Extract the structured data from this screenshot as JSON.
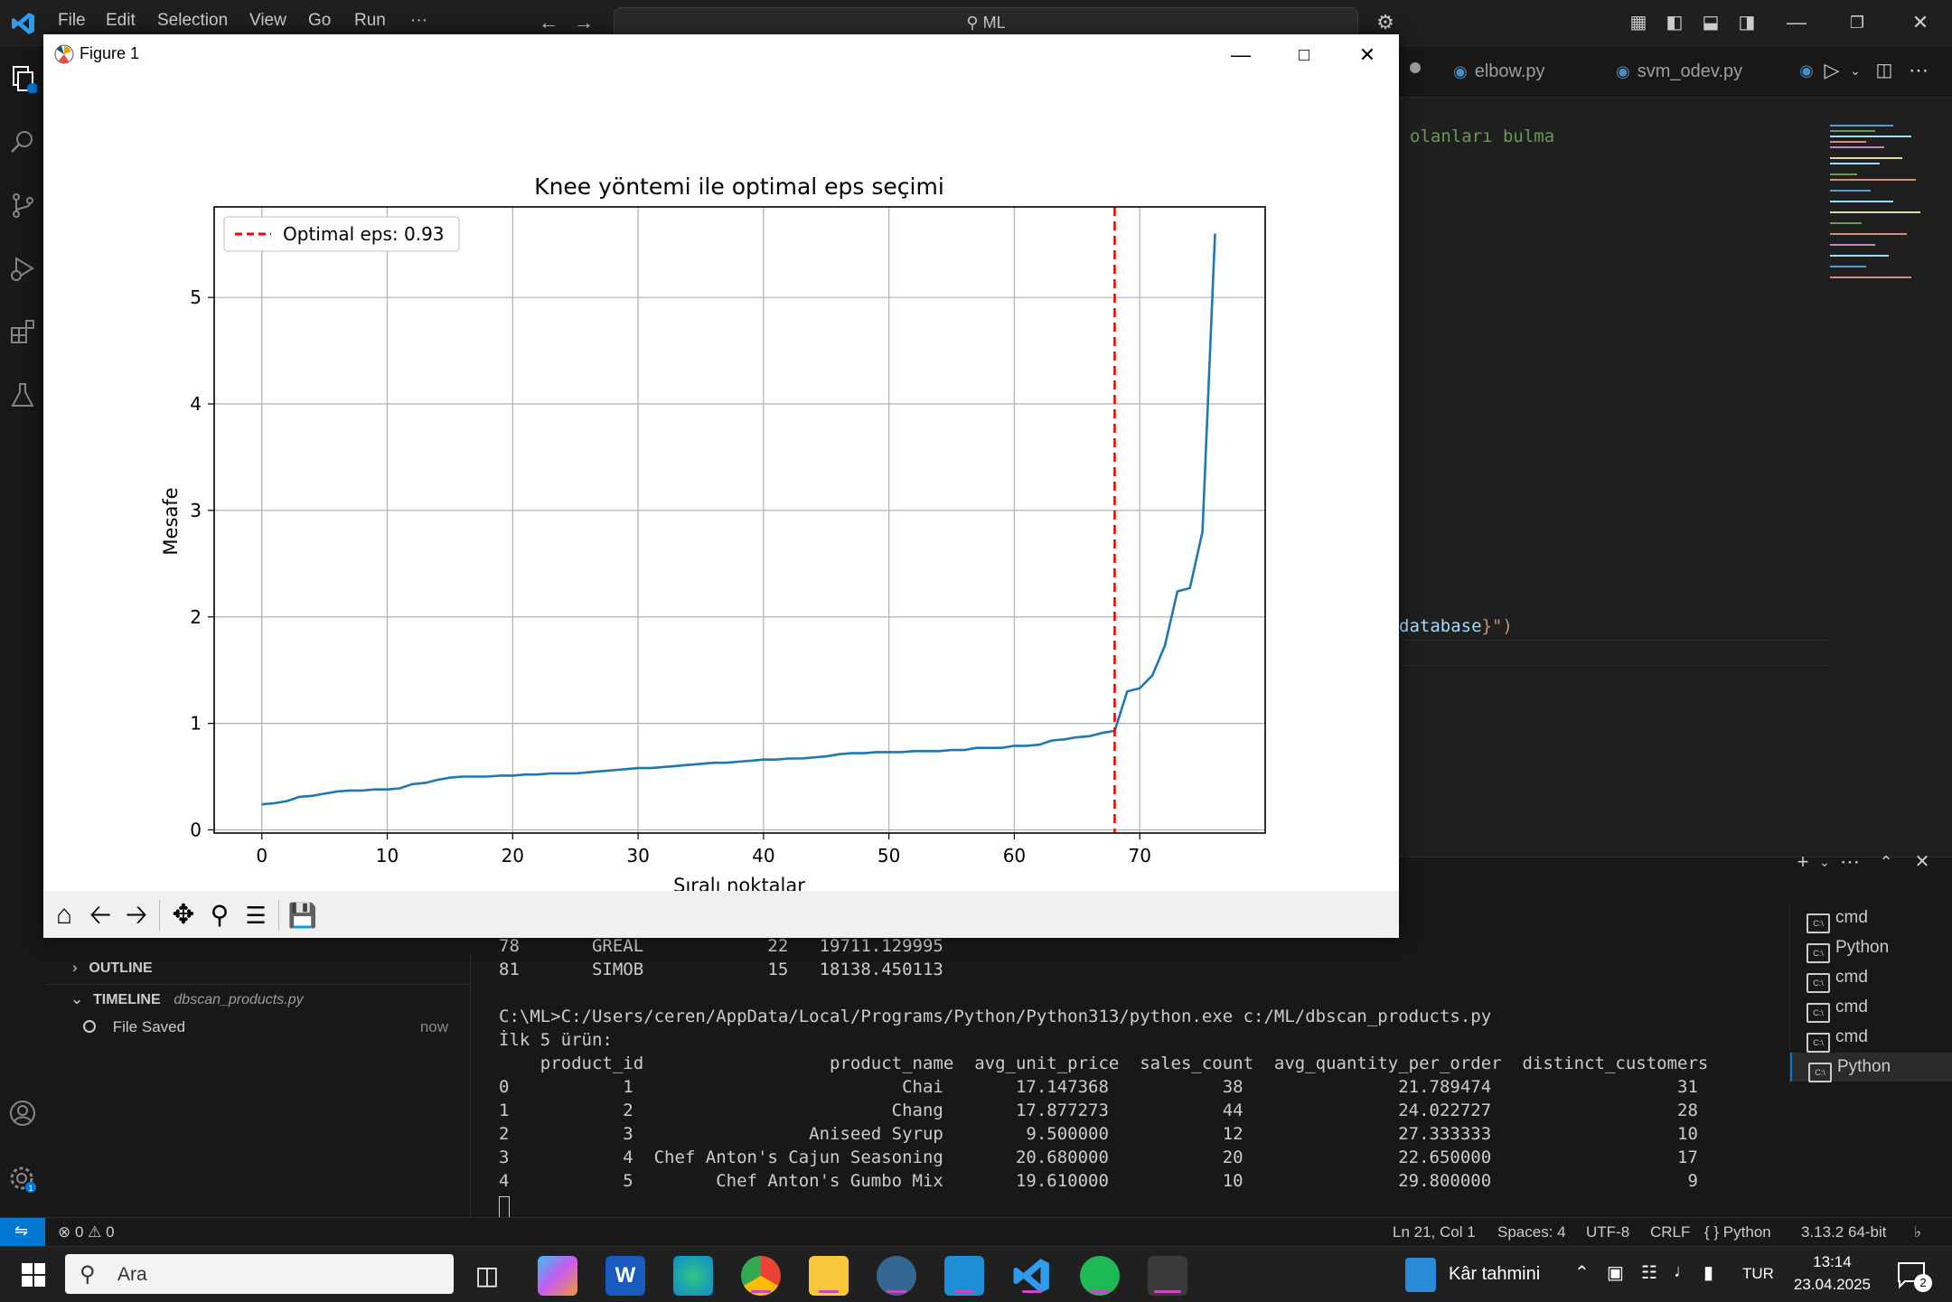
{
  "vscode": {
    "menu": [
      "File",
      "Edit",
      "Selection",
      "View",
      "Go",
      "Run",
      "···"
    ],
    "command_center": "ML",
    "tabs": [
      {
        "label": "elbow.py"
      },
      {
        "label": "svm_odev.py"
      }
    ],
    "editor_lines": {
      "line1": "olanları bulma",
      "line2_prefix": "database",
      "line2_suffix": "}\")"
    }
  },
  "figure": {
    "window_title": "Figure 1"
  },
  "chart_data": {
    "type": "line",
    "title": "Knee yöntemi ile optimal eps seçimi",
    "xlabel": "Sıralı noktalar",
    "ylabel": "Mesafe",
    "xlim": [
      -3.8,
      80
    ],
    "ylim": [
      -0.03,
      5.85
    ],
    "xticks": [
      0,
      10,
      20,
      30,
      40,
      50,
      60,
      70
    ],
    "yticks": [
      0,
      1,
      2,
      3,
      4,
      5
    ],
    "grid": true,
    "legend_position": "top-left",
    "series": [
      {
        "name": "",
        "color": "#1f77b4",
        "x": [
          0,
          1,
          2,
          3,
          4,
          5,
          6,
          7,
          8,
          9,
          10,
          11,
          12,
          13,
          14,
          15,
          16,
          17,
          18,
          19,
          20,
          21,
          22,
          23,
          24,
          25,
          26,
          27,
          28,
          29,
          30,
          31,
          32,
          33,
          34,
          35,
          36,
          37,
          38,
          39,
          40,
          41,
          42,
          43,
          44,
          45,
          46,
          47,
          48,
          49,
          50,
          51,
          52,
          53,
          54,
          55,
          56,
          57,
          58,
          59,
          60,
          61,
          62,
          63,
          64,
          65,
          66,
          67,
          68,
          69,
          70,
          71,
          72,
          73,
          74,
          75,
          76
        ],
        "y": [
          0.24,
          0.25,
          0.27,
          0.31,
          0.32,
          0.34,
          0.36,
          0.37,
          0.37,
          0.38,
          0.38,
          0.39,
          0.43,
          0.44,
          0.47,
          0.49,
          0.5,
          0.5,
          0.5,
          0.51,
          0.51,
          0.52,
          0.52,
          0.53,
          0.53,
          0.53,
          0.54,
          0.55,
          0.56,
          0.57,
          0.58,
          0.58,
          0.59,
          0.6,
          0.61,
          0.62,
          0.63,
          0.63,
          0.64,
          0.65,
          0.66,
          0.66,
          0.67,
          0.67,
          0.68,
          0.69,
          0.71,
          0.72,
          0.72,
          0.73,
          0.73,
          0.73,
          0.74,
          0.74,
          0.74,
          0.75,
          0.75,
          0.77,
          0.77,
          0.77,
          0.79,
          0.79,
          0.8,
          0.84,
          0.85,
          0.87,
          0.88,
          0.91,
          0.93,
          1.3,
          1.33,
          1.45,
          1.73,
          2.24,
          2.27,
          2.8,
          5.6
        ]
      },
      {
        "name": "Optimal eps: 0.93",
        "type": "vline",
        "x": 68,
        "color": "#ff0000",
        "style": "dashed"
      }
    ]
  },
  "sidebar": {
    "outline_label": "OUTLINE",
    "timeline_label": "TIMELINE",
    "timeline_file": "dbscan_products.py",
    "timeline_entry": "File Saved",
    "timeline_time": "now"
  },
  "terminal": {
    "lines": [
      "78       GREAL            22   19711.129995",
      "81       SIMOB            15   18138.450113",
      "",
      "C:\\ML>C:/Users/ceren/AppData/Local/Programs/Python/Python313/python.exe c:/ML/dbscan_products.py",
      "İlk 5 ürün:",
      "    product_id                  product_name  avg_unit_price  sales_count  avg_quantity_per_order  distinct_customers",
      "0           1                          Chai       17.147368           38               21.789474                  31",
      "1           2                         Chang       17.877273           44               24.022727                  28",
      "2           3                 Aniseed Syrup        9.500000           12               27.333333                  10",
      "3           4  Chef Anton's Cajun Seasoning       20.680000           20               22.650000                  17",
      "4           5        Chef Anton's Gumbo Mix       19.610000           10               29.800000                   9"
    ],
    "sessions": [
      "cmd",
      "Python",
      "cmd",
      "cmd",
      "cmd",
      "Python"
    ]
  },
  "statusbar": {
    "problems": "⊗ 0 ⚠ 0",
    "position": "Ln 21, Col 1",
    "spaces": "Spaces: 4",
    "encoding": "UTF-8",
    "eol": "CRLF",
    "language": "{ } Python",
    "interpreter": "3.13.2 64-bit"
  },
  "taskbar": {
    "search_placeholder": "Ara",
    "weather_label": "Kâr tahmini",
    "lang": "TUR",
    "time": "13:14",
    "date": "23.04.2025",
    "notif_count": "2"
  }
}
